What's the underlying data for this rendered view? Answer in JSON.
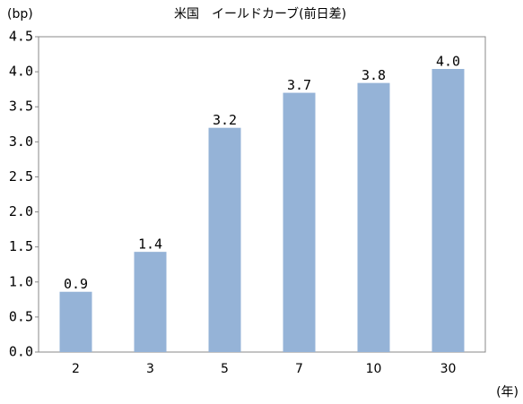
{
  "chart_data": {
    "type": "bar",
    "title": "米国　イールドカーブ(前日差)",
    "y_label": "(bp)",
    "x_label": "(年)",
    "categories": [
      "2",
      "3",
      "5",
      "7",
      "10",
      "30"
    ],
    "values": [
      0.86,
      1.43,
      3.2,
      3.7,
      3.84,
      4.04
    ],
    "value_labels": [
      "0.9",
      "1.4",
      "3.2",
      "3.7",
      "3.8",
      "4.0"
    ],
    "color": "#95b3d7",
    "ylim": [
      0,
      4.5
    ],
    "yticks": [
      {
        "value": 0,
        "label": "0.0"
      },
      0.5,
      {
        "value": 1,
        "label": "1.0"
      },
      1.5,
      {
        "value": 2,
        "label": "2.0"
      },
      2.5,
      {
        "value": 3,
        "label": "3.0"
      },
      3.5,
      {
        "value": 4,
        "label": "4.0"
      },
      4.5
    ],
    "grid": false
  }
}
